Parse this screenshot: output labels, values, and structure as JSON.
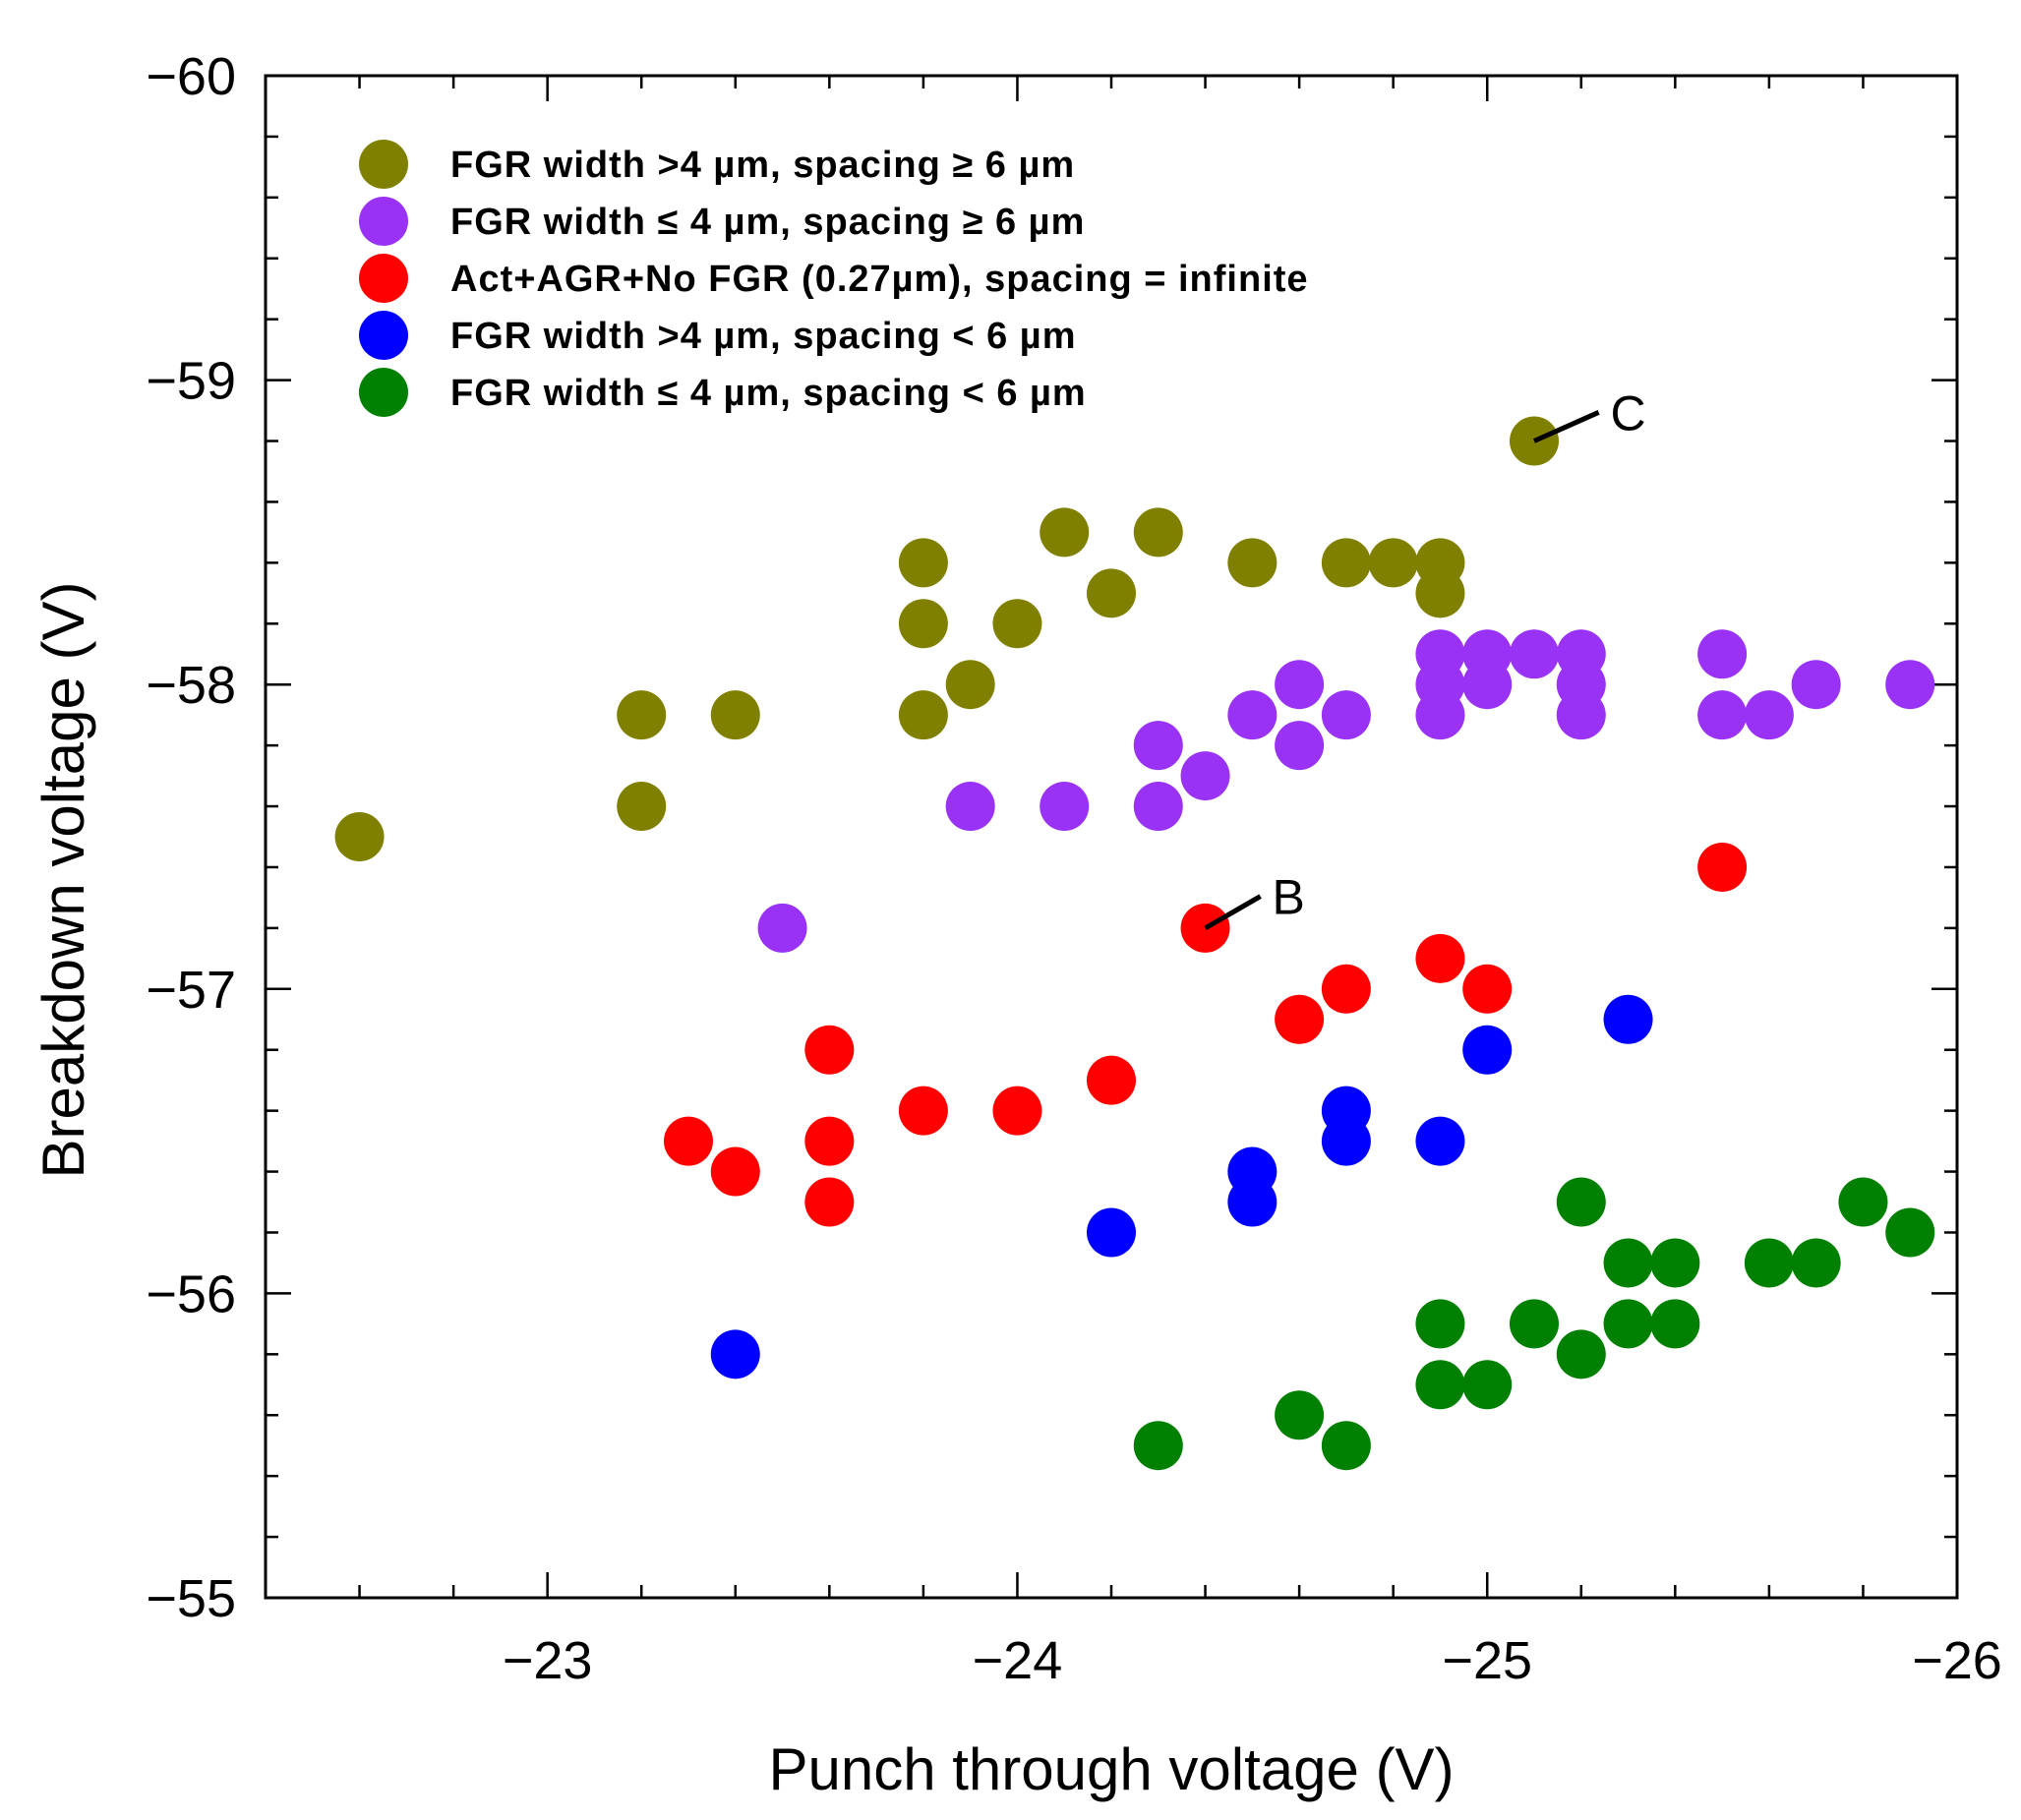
{
  "chart_data": {
    "type": "scatter",
    "title": "",
    "xlabel": "Punch through voltage (V)",
    "ylabel": "Breakdown voltage (V)",
    "xlim": [
      -22.4,
      -26
    ],
    "ylim": [
      -55,
      -60
    ],
    "x_reversed": true,
    "y_reversed": true,
    "x_ticks": [
      -23,
      -24,
      -25,
      -26
    ],
    "x_tick_labels": [
      "−23",
      "−24",
      "−25",
      "−26"
    ],
    "y_ticks": [
      -60,
      -59,
      -58,
      -57,
      -56,
      -55
    ],
    "y_tick_labels": [
      "−60",
      "−59",
      "−58",
      "−57",
      "−56",
      "−55"
    ],
    "grid": false,
    "legend_position": "top-left",
    "series": [
      {
        "name": "FGR width >4 µm, spacing ≥ 6 µm",
        "color": "#808000",
        "points": [
          [
            -22.6,
            -57.5
          ],
          [
            -23.2,
            -57.9
          ],
          [
            -23.2,
            -57.6
          ],
          [
            -23.4,
            -57.9
          ],
          [
            -23.8,
            -58.4
          ],
          [
            -23.8,
            -58.2
          ],
          [
            -23.8,
            -57.9
          ],
          [
            -23.9,
            -58.0
          ],
          [
            -24.0,
            -58.2
          ],
          [
            -24.1,
            -58.5
          ],
          [
            -24.2,
            -58.3
          ],
          [
            -24.3,
            -58.5
          ],
          [
            -24.5,
            -58.4
          ],
          [
            -24.7,
            -58.4
          ],
          [
            -24.8,
            -58.4
          ],
          [
            -24.9,
            -58.4
          ],
          [
            -24.9,
            -58.3
          ],
          [
            -25.1,
            -58.8
          ]
        ]
      },
      {
        "name": "FGR width ≤ 4 µm, spacing ≥ 6 µm",
        "color": "#9932f5",
        "points": [
          [
            -23.5,
            -57.2
          ],
          [
            -23.9,
            -57.6
          ],
          [
            -24.1,
            -57.6
          ],
          [
            -24.3,
            -57.6
          ],
          [
            -24.3,
            -57.8
          ],
          [
            -24.4,
            -57.7
          ],
          [
            -24.5,
            -57.9
          ],
          [
            -24.6,
            -58.0
          ],
          [
            -24.6,
            -57.8
          ],
          [
            -24.7,
            -57.9
          ],
          [
            -24.9,
            -58.1
          ],
          [
            -24.9,
            -58.0
          ],
          [
            -24.9,
            -57.9
          ],
          [
            -25.0,
            -58.1
          ],
          [
            -25.0,
            -58.0
          ],
          [
            -25.1,
            -58.1
          ],
          [
            -25.2,
            -58.1
          ],
          [
            -25.2,
            -58.0
          ],
          [
            -25.2,
            -57.9
          ],
          [
            -25.5,
            -58.1
          ],
          [
            -25.5,
            -57.9
          ],
          [
            -25.6,
            -57.9
          ],
          [
            -25.7,
            -58.0
          ],
          [
            -25.9,
            -58.0
          ]
        ]
      },
      {
        "name": "Act+AGR+No FGR (0.27µm), spacing = infinite",
        "color": "#ff0000",
        "points": [
          [
            -23.3,
            -56.5
          ],
          [
            -23.4,
            -56.4
          ],
          [
            -23.6,
            -56.8
          ],
          [
            -23.6,
            -56.5
          ],
          [
            -23.6,
            -56.3
          ],
          [
            -23.8,
            -56.6
          ],
          [
            -24.0,
            -56.6
          ],
          [
            -24.2,
            -56.7
          ],
          [
            -24.4,
            -57.2
          ],
          [
            -24.6,
            -56.9
          ],
          [
            -24.7,
            -57.0
          ],
          [
            -24.9,
            -57.1
          ],
          [
            -25.0,
            -57.0
          ],
          [
            -25.5,
            -57.4
          ]
        ]
      },
      {
        "name": "FGR width >4 µm, spacing < 6 µm",
        "color": "#0000ff",
        "points": [
          [
            -23.4,
            -55.8
          ],
          [
            -24.2,
            -56.2
          ],
          [
            -24.5,
            -56.4
          ],
          [
            -24.5,
            -56.3
          ],
          [
            -24.7,
            -56.6
          ],
          [
            -24.7,
            -56.5
          ],
          [
            -24.9,
            -56.5
          ],
          [
            -25.0,
            -56.8
          ],
          [
            -25.3,
            -56.9
          ]
        ]
      },
      {
        "name": "FGR width ≤ 4 µm, spacing < 6 µm",
        "color": "#008000",
        "points": [
          [
            -24.3,
            -55.5
          ],
          [
            -24.6,
            -55.6
          ],
          [
            -24.7,
            -55.5
          ],
          [
            -24.9,
            -55.9
          ],
          [
            -24.9,
            -55.7
          ],
          [
            -25.0,
            -55.7
          ],
          [
            -25.1,
            -55.9
          ],
          [
            -25.2,
            -56.3
          ],
          [
            -25.2,
            -55.8
          ],
          [
            -25.3,
            -56.1
          ],
          [
            -25.3,
            -55.9
          ],
          [
            -25.4,
            -56.1
          ],
          [
            -25.4,
            -55.9
          ],
          [
            -25.6,
            -56.1
          ],
          [
            -25.7,
            -56.1
          ],
          [
            -25.8,
            -56.3
          ],
          [
            -25.9,
            -56.2
          ]
        ]
      }
    ],
    "annotations": [
      {
        "text": "C",
        "point": [
          -25.1,
          -58.8
        ],
        "label_at": [
          -25.3,
          -58.92
        ]
      },
      {
        "text": "B",
        "point": [
          -24.4,
          -57.2
        ],
        "label_at": [
          -24.58,
          -57.33
        ]
      }
    ]
  }
}
